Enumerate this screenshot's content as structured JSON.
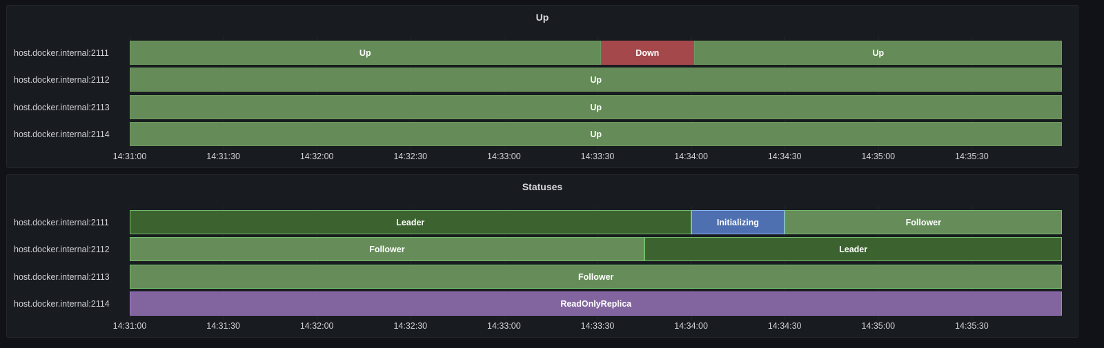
{
  "panels": [
    {
      "title": "Up",
      "rows": [
        {
          "label": "host.docker.internal:2111",
          "segments": [
            {
              "text": "Up",
              "start": "14:31:00",
              "end": "14:33:31",
              "state": "up"
            },
            {
              "text": "Down",
              "start": "14:33:31",
              "end": "14:34:01",
              "state": "down"
            },
            {
              "text": "Up",
              "start": "14:34:01",
              "end": "14:35:59",
              "state": "up"
            }
          ]
        },
        {
          "label": "host.docker.internal:2112",
          "segments": [
            {
              "text": "Up",
              "start": "14:31:00",
              "end": "14:35:59",
              "state": "up"
            }
          ]
        },
        {
          "label": "host.docker.internal:2113",
          "segments": [
            {
              "text": "Up",
              "start": "14:31:00",
              "end": "14:35:59",
              "state": "up"
            }
          ]
        },
        {
          "label": "host.docker.internal:2114",
          "segments": [
            {
              "text": "Up",
              "start": "14:31:00",
              "end": "14:35:59",
              "state": "up"
            }
          ]
        }
      ],
      "x_ticks": [
        "14:31:00",
        "14:31:30",
        "14:32:00",
        "14:32:30",
        "14:33:00",
        "14:33:30",
        "14:34:00",
        "14:34:30",
        "14:35:00",
        "14:35:30"
      ]
    },
    {
      "title": "Statuses",
      "rows": [
        {
          "label": "host.docker.internal:2111",
          "segments": [
            {
              "text": "Leader",
              "start": "14:31:00",
              "end": "14:34:00",
              "state": "leader"
            },
            {
              "text": "Initializing",
              "start": "14:34:00",
              "end": "14:34:30",
              "state": "initializing"
            },
            {
              "text": "Follower",
              "start": "14:34:30",
              "end": "14:35:59",
              "state": "follower"
            }
          ]
        },
        {
          "label": "host.docker.internal:2112",
          "segments": [
            {
              "text": "Follower",
              "start": "14:31:00",
              "end": "14:33:45",
              "state": "follower"
            },
            {
              "text": "Leader",
              "start": "14:33:45",
              "end": "14:35:59",
              "state": "leader"
            }
          ]
        },
        {
          "label": "host.docker.internal:2113",
          "segments": [
            {
              "text": "Follower",
              "start": "14:31:00",
              "end": "14:35:59",
              "state": "follower"
            }
          ]
        },
        {
          "label": "host.docker.internal:2114",
          "segments": [
            {
              "text": "ReadOnlyReplica",
              "start": "14:31:00",
              "end": "14:35:59",
              "state": "readonly"
            }
          ]
        }
      ],
      "x_ticks": [
        "14:31:00",
        "14:31:30",
        "14:32:00",
        "14:32:30",
        "14:33:00",
        "14:33:30",
        "14:34:00",
        "14:34:30",
        "14:35:00",
        "14:35:30"
      ]
    }
  ],
  "state_colors": {
    "up": {
      "fill": "#658b58",
      "border": "#6c9a5e"
    },
    "down": {
      "fill": "#a4484c",
      "border": "#b04a50"
    },
    "leader": {
      "fill": "#3c632f",
      "border": "#73bf69"
    },
    "follower": {
      "fill": "#668d59",
      "border": "#73bf69"
    },
    "initializing": {
      "fill": "#4e6fb0",
      "border": "#8ab8ff"
    },
    "readonly": {
      "fill": "#82659e",
      "border": "#a97ed0"
    }
  }
}
